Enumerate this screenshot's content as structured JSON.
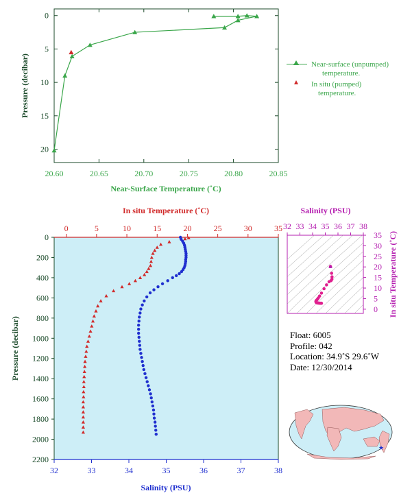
{
  "chart_data": [
    {
      "type": "line",
      "xlabel": "Near-Surface Temperature (˚C)",
      "ylabel": "Pressure (decibar)",
      "xlim": [
        20.6,
        20.85
      ],
      "ylim": [
        22,
        -1
      ],
      "xticks": [
        "20.60",
        "20.65",
        "20.70",
        "20.75",
        "20.80",
        "20.85"
      ],
      "yticks": [
        "0",
        "5",
        "10",
        "15",
        "20"
      ],
      "series": [
        {
          "name": "Near-surface (unpumped) temperature.",
          "color": "#3aa64a",
          "points": [
            [
              20.778,
              0.1
            ],
            [
              20.805,
              0.1
            ],
            [
              20.815,
              0.0
            ],
            [
              20.826,
              0.1
            ],
            [
              20.805,
              0.7
            ],
            [
              20.79,
              1.8
            ],
            [
              20.69,
              2.5
            ],
            [
              20.64,
              4.4
            ],
            [
              20.62,
              6.1
            ],
            [
              20.612,
              9.0
            ],
            [
              20.6,
              20.2
            ]
          ]
        },
        {
          "name": "In situ (pumped) temperature.",
          "color": "#d12b2b",
          "points": [
            [
              20.619,
              5.5
            ]
          ]
        }
      ]
    },
    {
      "type": "scatter",
      "ylabel": "Pressure (decibar)",
      "ylim": [
        2200,
        0
      ],
      "yticks": [
        "0",
        "200",
        "400",
        "600",
        "800",
        "1000",
        "1200",
        "1400",
        "1600",
        "1800",
        "2000",
        "2200"
      ],
      "top_axis": {
        "label": "In situ Temperature (˚C)",
        "color": "#d12b2b",
        "lim": [
          -2,
          35
        ],
        "ticks": [
          "0",
          "5",
          "10",
          "15",
          "20",
          "25",
          "30",
          "35"
        ]
      },
      "bottom_axis": {
        "label": "Salinity (PSU)",
        "color": "#1f2fcf",
        "lim": [
          32,
          38
        ],
        "ticks": [
          "32",
          "33",
          "34",
          "35",
          "36",
          "37",
          "38"
        ]
      },
      "series": [
        {
          "name": "In situ Temperature",
          "color": "#d12b2b",
          "points": [
            [
              20.2,
              5
            ],
            [
              19.6,
              15
            ],
            [
              17.0,
              45
            ],
            [
              15.6,
              70
            ],
            [
              15.0,
              100
            ],
            [
              14.6,
              130
            ],
            [
              14.3,
              160
            ],
            [
              14.1,
              200
            ],
            [
              14.0,
              240
            ],
            [
              13.9,
              280
            ],
            [
              13.6,
              310
            ],
            [
              13.3,
              340
            ],
            [
              12.9,
              370
            ],
            [
              12.2,
              400
            ],
            [
              11.4,
              430
            ],
            [
              10.4,
              460
            ],
            [
              9.2,
              490
            ],
            [
              7.8,
              530
            ],
            [
              6.6,
              580
            ],
            [
              5.7,
              630
            ],
            [
              5.2,
              680
            ],
            [
              4.9,
              730
            ],
            [
              4.6,
              780
            ],
            [
              4.4,
              830
            ],
            [
              4.2,
              880
            ],
            [
              4.0,
              930
            ],
            [
              3.8,
              980
            ],
            [
              3.6,
              1030
            ],
            [
              3.4,
              1080
            ],
            [
              3.3,
              1130
            ],
            [
              3.2,
              1180
            ],
            [
              3.1,
              1230
            ],
            [
              3.05,
              1280
            ],
            [
              3.0,
              1330
            ],
            [
              2.95,
              1380
            ],
            [
              2.9,
              1430
            ],
            [
              2.9,
              1480
            ],
            [
              2.85,
              1530
            ],
            [
              2.85,
              1580
            ],
            [
              2.8,
              1630
            ],
            [
              2.8,
              1680
            ],
            [
              2.8,
              1730
            ],
            [
              2.8,
              1780
            ],
            [
              2.8,
              1830
            ],
            [
              2.8,
              1880
            ],
            [
              2.8,
              1930
            ]
          ]
        },
        {
          "name": "Salinity",
          "color": "#1f2fcf",
          "points": [
            [
              35.38,
              0
            ],
            [
              35.4,
              20
            ],
            [
              35.44,
              40
            ],
            [
              35.47,
              60
            ],
            [
              35.49,
              80
            ],
            [
              35.5,
              100
            ],
            [
              35.51,
              120
            ],
            [
              35.52,
              140
            ],
            [
              35.53,
              160
            ],
            [
              35.53,
              180
            ],
            [
              35.53,
              200
            ],
            [
              35.52,
              220
            ],
            [
              35.52,
              240
            ],
            [
              35.51,
              260
            ],
            [
              35.5,
              280
            ],
            [
              35.48,
              300
            ],
            [
              35.45,
              320
            ],
            [
              35.41,
              340
            ],
            [
              35.35,
              360
            ],
            [
              35.27,
              380
            ],
            [
              35.17,
              400
            ],
            [
              35.04,
              430
            ],
            [
              34.9,
              460
            ],
            [
              34.78,
              490
            ],
            [
              34.67,
              520
            ],
            [
              34.57,
              550
            ],
            [
              34.48,
              590
            ],
            [
              34.41,
              630
            ],
            [
              34.36,
              670
            ],
            [
              34.32,
              710
            ],
            [
              34.3,
              750
            ],
            [
              34.28,
              790
            ],
            [
              34.27,
              830
            ],
            [
              34.26,
              870
            ],
            [
              34.26,
              910
            ],
            [
              34.26,
              950
            ],
            [
              34.27,
              990
            ],
            [
              34.28,
              1030
            ],
            [
              34.29,
              1070
            ],
            [
              34.3,
              1110
            ],
            [
              34.32,
              1150
            ],
            [
              34.34,
              1190
            ],
            [
              34.36,
              1230
            ],
            [
              34.38,
              1270
            ],
            [
              34.4,
              1310
            ],
            [
              34.43,
              1350
            ],
            [
              34.46,
              1390
            ],
            [
              34.49,
              1430
            ],
            [
              34.52,
              1470
            ],
            [
              34.55,
              1510
            ],
            [
              34.58,
              1550
            ],
            [
              34.6,
              1590
            ],
            [
              34.62,
              1630
            ],
            [
              34.64,
              1670
            ],
            [
              34.66,
              1710
            ],
            [
              34.67,
              1750
            ],
            [
              34.68,
              1790
            ],
            [
              34.7,
              1830
            ],
            [
              34.71,
              1870
            ],
            [
              34.72,
              1910
            ],
            [
              34.73,
              1950
            ]
          ]
        }
      ]
    },
    {
      "type": "scatter",
      "title": "Salinity (PSU)",
      "xlim": [
        32,
        38
      ],
      "ylim": [
        -2,
        35
      ],
      "xticks": [
        "32",
        "33",
        "34",
        "35",
        "36",
        "37",
        "38"
      ],
      "yticks": [
        "0",
        "5",
        "10",
        "15",
        "20",
        "25",
        "30",
        "35"
      ],
      "ylabel": "In situ Temperature (˚C)",
      "series": [
        {
          "name": "T-S",
          "color": "#e0208f",
          "points": [
            [
              35.41,
              20.2
            ],
            [
              35.5,
              17.0
            ],
            [
              35.53,
              15.3
            ],
            [
              35.52,
              14.1
            ],
            [
              35.45,
              13.5
            ],
            [
              35.3,
              13.0
            ],
            [
              35.1,
              11.5
            ],
            [
              34.9,
              9.7
            ],
            [
              34.7,
              7.6
            ],
            [
              34.55,
              6.2
            ],
            [
              34.45,
              5.3
            ],
            [
              34.38,
              4.7
            ],
            [
              34.32,
              4.3
            ],
            [
              34.28,
              4.0
            ],
            [
              34.26,
              3.7
            ],
            [
              34.27,
              3.4
            ],
            [
              34.29,
              3.2
            ],
            [
              34.33,
              3.05
            ],
            [
              34.38,
              2.95
            ],
            [
              34.45,
              2.9
            ],
            [
              34.52,
              2.85
            ],
            [
              34.6,
              2.8
            ],
            [
              34.66,
              2.8
            ],
            [
              34.7,
              2.8
            ]
          ]
        }
      ]
    }
  ],
  "legend": {
    "near_surface": [
      "Near-surface (unpumped)",
      "temperature."
    ],
    "in_situ": [
      "In situ (pumped)",
      "temperature."
    ]
  },
  "info": {
    "float": "Float:  6005",
    "profile": "Profile:  042",
    "location": "Location:  34.9˚S  29.6˚W",
    "date": "Date:  12/30/2014"
  },
  "colors": {
    "green": "#3aa64a",
    "red": "#d12b2b",
    "blue": "#1f2fcf",
    "magenta": "#b51fb0",
    "pink": "#e0208f",
    "plot_bg": "#cdeef7",
    "axis_dark": "#1b4a2a"
  }
}
